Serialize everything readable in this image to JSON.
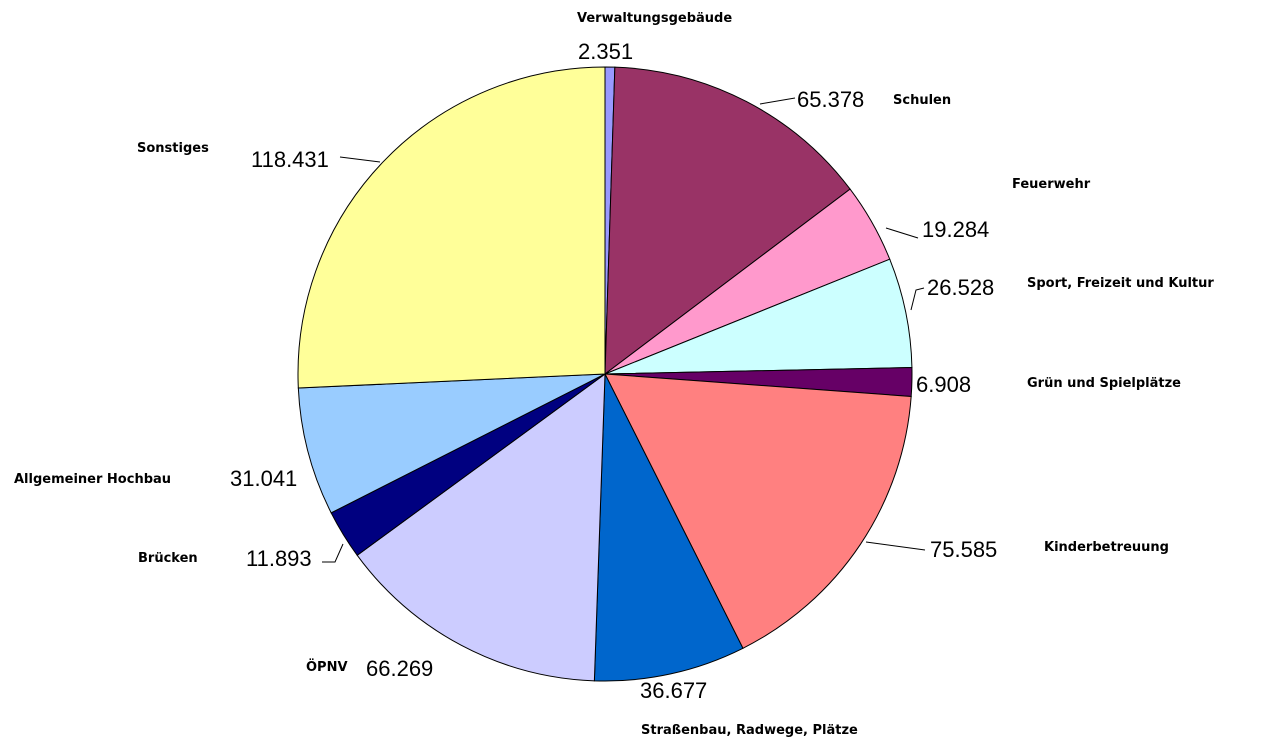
{
  "chart_data": {
    "type": "pie",
    "start": "12 o'clock",
    "direction": "clockwise",
    "slices": [
      {
        "label": "Verwaltungsgebäude",
        "value": 2351,
        "display": "2.351",
        "color": "#9999FF"
      },
      {
        "label": "Schulen",
        "value": 65378,
        "display": "65.378",
        "color": "#993366"
      },
      {
        "label": "Feuerwehr",
        "value": 19284,
        "display": "19.284",
        "color": "#FF99CC"
      },
      {
        "label": "Sport, Freizeit und Kultur",
        "value": 26528,
        "display": "26.528",
        "color": "#CCFFFF"
      },
      {
        "label": "Grün und Spielplätze",
        "value": 6908,
        "display": "6.908",
        "color": "#660066"
      },
      {
        "label": "Kinderbetreuung",
        "value": 75585,
        "display": "75.585",
        "color": "#FF8080"
      },
      {
        "label": "Straßenbau, Radwege, Plätze",
        "value": 36677,
        "display": "36.677",
        "color": "#0066CC"
      },
      {
        "label": "ÖPNV",
        "value": 66269,
        "display": "66.269",
        "color": "#CCCCFF"
      },
      {
        "label": "Brücken",
        "value": 11893,
        "display": "11.893",
        "color": "#000080"
      },
      {
        "label": "Allgemeiner Hochbau",
        "value": 31041,
        "display": "31.041",
        "color": "#99CCFF"
      },
      {
        "label": "Sonstiges",
        "value": 118431,
        "display": "118.431",
        "color": "#FFFF99"
      }
    ]
  }
}
